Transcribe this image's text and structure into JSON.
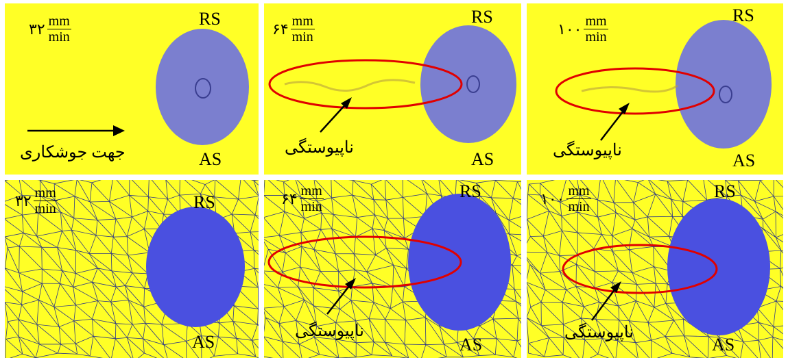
{
  "colors": {
    "background": "#ffff26",
    "workpiece": "#7b7fcf",
    "workpiece_mesh": "#4a50e0",
    "mesh_line": "#2f3a86",
    "defect_ellipse": "#e00000"
  },
  "units": {
    "numerator": "mm",
    "denominator": "min"
  },
  "side_labels": {
    "retreating": "RS",
    "advancing": "AS"
  },
  "defect_label": "ناپیوستگی",
  "direction_label": "جهت جوشکاری",
  "panels": [
    {
      "speed": "۳۲",
      "mesh": false,
      "defect": false,
      "arrow_direction": true
    },
    {
      "speed": "۶۴",
      "mesh": false,
      "defect": true
    },
    {
      "speed": "۱۰۰",
      "mesh": false,
      "defect": true
    },
    {
      "speed": "۳۲",
      "mesh": true,
      "defect": false
    },
    {
      "speed": "۶۴",
      "mesh": true,
      "defect": true
    },
    {
      "speed": "۱۰۰",
      "mesh": true,
      "defect": true
    }
  ]
}
